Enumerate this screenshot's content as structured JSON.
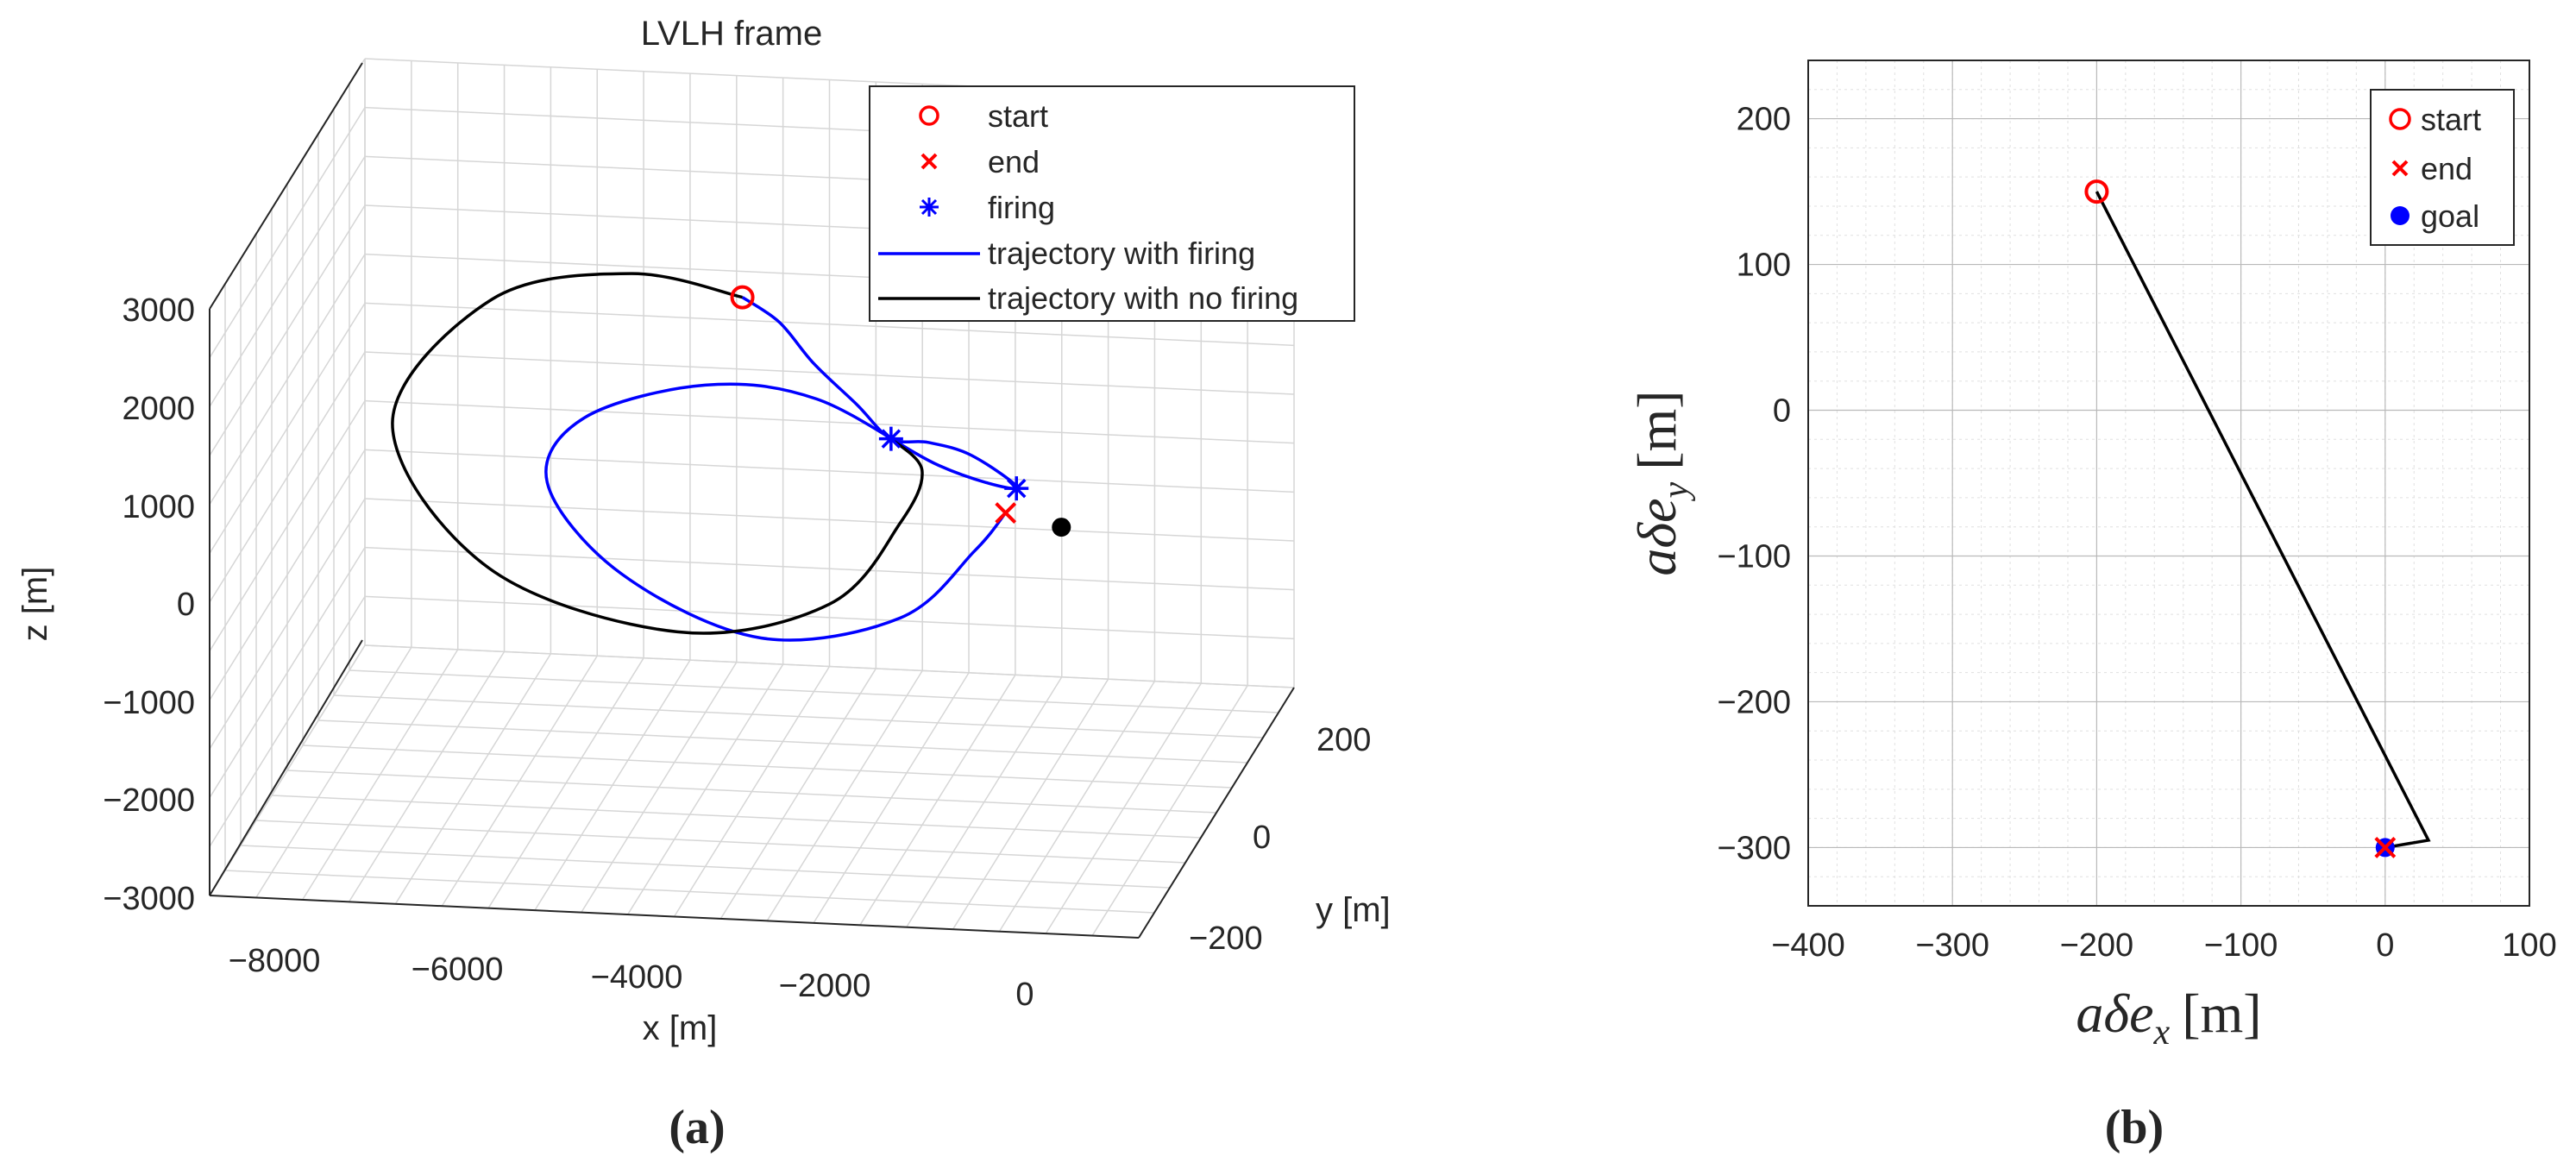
{
  "panel_labels": {
    "a": "(a)",
    "b": "(b)"
  },
  "colors": {
    "start": "#ff0000",
    "end": "#ff0000",
    "firing": "#0000ff",
    "goal": "#0000ff",
    "traj_firing": "#0000ff",
    "traj_nofiring": "#000000",
    "target": "#000000"
  },
  "chart_data": [
    {
      "type": "line",
      "title": "LVLH frame",
      "xlabel": "x [m]",
      "ylabel": "y [m]",
      "zlabel": "z [m]",
      "xticks": [
        "−8000",
        "−6000",
        "−4000",
        "−2000",
        "0"
      ],
      "yticks": [
        "200",
        "0",
        "−200"
      ],
      "zticks": [
        "3000",
        "2000",
        "1000",
        "0",
        "−1000",
        "−2000",
        "−3000"
      ],
      "xlim": [
        -9000,
        1000
      ],
      "ylim": [
        -250,
        250
      ],
      "zlim": [
        -3000,
        3000
      ],
      "grid": true,
      "legend_position": "top-right",
      "legend": [
        {
          "label": "start",
          "marker": "circle",
          "color": "#ff0000"
        },
        {
          "label": "end",
          "marker": "x",
          "color": "#ff0000"
        },
        {
          "label": "firing",
          "marker": "asterisk",
          "color": "#0000ff"
        },
        {
          "label": "trajectory with firing",
          "marker": "line",
          "color": "#0000ff"
        },
        {
          "label": "trajectory with no firing",
          "marker": "line",
          "color": "#000000"
        }
      ],
      "series": [
        {
          "name": "trajectory with firing",
          "color": "#0000ff",
          "points": [
            [
              -3600,
              150,
              2840
            ],
            [
              -3200,
              150,
              2600
            ],
            [
              -2800,
              160,
              2250
            ],
            [
              -2300,
              170,
              1900
            ],
            [
              -1900,
              180,
              1620
            ],
            [
              -1500,
              180,
              1600
            ],
            [
              -1000,
              190,
              1540
            ],
            [
              -500,
              195,
              1250
            ],
            [
              -1300,
              205,
              1500
            ],
            [
              -2600,
              210,
              2150
            ],
            [
              -3800,
              210,
              2240
            ],
            [
              -5100,
              210,
              1850
            ],
            [
              -5500,
              210,
              1170
            ],
            [
              -4700,
              210,
              270
            ],
            [
              -3200,
              210,
              -320
            ],
            [
              -1700,
              210,
              -50
            ],
            [
              -900,
              210,
              670
            ],
            [
              -600,
              200,
              1020
            ]
          ]
        },
        {
          "name": "trajectory with no firing",
          "color": "#000000",
          "points": [
            [
              -3600,
              150,
              2840
            ],
            [
              -4800,
              150,
              3030
            ],
            [
              -6300,
              150,
              2700
            ],
            [
              -7400,
              140,
              1340
            ],
            [
              -6400,
              130,
              -150
            ],
            [
              -4400,
              120,
              -770
            ],
            [
              -2800,
              110,
              -470
            ],
            [
              -2000,
              120,
              450
            ],
            [
              -1700,
              140,
              1100
            ],
            [
              -1900,
              180,
              1620
            ]
          ]
        }
      ],
      "markers": [
        {
          "label": "start",
          "marker": "circle",
          "color": "#ff0000",
          "x": -3600,
          "y": 150,
          "z": 2840
        },
        {
          "label": "end",
          "marker": "x",
          "color": "#ff0000",
          "x": -600,
          "y": 200,
          "z": 1020
        },
        {
          "label": "firing",
          "marker": "asterisk",
          "color": "#0000ff",
          "x": -1900,
          "y": 180,
          "z": 1620
        },
        {
          "label": "firing",
          "marker": "asterisk",
          "color": "#0000ff",
          "x": -500,
          "y": 195,
          "z": 1250
        },
        {
          "label": "",
          "marker": "dot",
          "color": "#000000",
          "x": 0,
          "y": 200,
          "z": 900
        }
      ]
    },
    {
      "type": "line",
      "xlabel": "aδe",
      "xlabel_sub": "x",
      "xlabel_unit": "[m]",
      "ylabel": "aδe",
      "ylabel_sub": "y",
      "ylabel_unit": "[m]",
      "xlim": [
        -400,
        100
      ],
      "ylim": [
        -340,
        240
      ],
      "xticks": [
        -400,
        -300,
        -200,
        -100,
        0,
        100
      ],
      "xtick_labels": [
        "−400",
        "−300",
        "−200",
        "−100",
        "0",
        "100"
      ],
      "yticks": [
        200,
        100,
        0,
        -100,
        -200,
        -300
      ],
      "ytick_labels": [
        "200",
        "100",
        "0",
        "−100",
        "−200",
        "−300"
      ],
      "grid": true,
      "legend_position": "top-right",
      "legend": [
        {
          "label": "start",
          "marker": "circle",
          "color": "#ff0000"
        },
        {
          "label": "end",
          "marker": "x",
          "color": "#ff0000"
        },
        {
          "label": "goal",
          "marker": "dot",
          "color": "#0000ff"
        }
      ],
      "series": [
        {
          "name": "",
          "color": "#000000",
          "x": [
            -200,
            30,
            0
          ],
          "y": [
            150,
            -295,
            -300
          ]
        }
      ],
      "markers": [
        {
          "label": "start",
          "marker": "circle",
          "color": "#ff0000",
          "x": -200,
          "y": 150
        },
        {
          "label": "goal",
          "marker": "dot",
          "color": "#0000ff",
          "x": 0,
          "y": -300
        },
        {
          "label": "end",
          "marker": "x",
          "color": "#ff0000",
          "x": 0,
          "y": -300
        }
      ]
    }
  ]
}
